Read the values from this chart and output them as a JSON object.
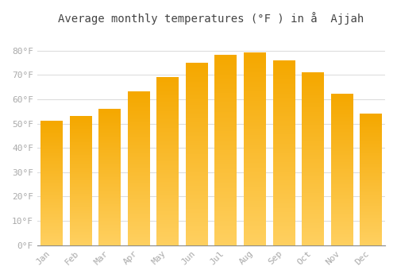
{
  "title": "Average monthly temperatures (°F ) in å  Ajjah",
  "months": [
    "Jan",
    "Feb",
    "Mar",
    "Apr",
    "May",
    "Jun",
    "Jul",
    "Aug",
    "Sep",
    "Oct",
    "Nov",
    "Dec"
  ],
  "values": [
    51,
    53,
    56,
    63,
    69,
    75,
    78,
    79,
    76,
    71,
    62,
    54
  ],
  "bar_color_dark": "#F5A800",
  "bar_color_light": "#FFD060",
  "background_color": "#FFFFFF",
  "grid_color": "#DDDDDD",
  "ylim": [
    0,
    88
  ],
  "yticks": [
    0,
    10,
    20,
    30,
    40,
    50,
    60,
    70,
    80
  ],
  "ytick_labels": [
    "0°F",
    "10°F",
    "20°F",
    "30°F",
    "40°F",
    "50°F",
    "60°F",
    "70°F",
    "80°F"
  ],
  "title_fontsize": 10,
  "tick_fontsize": 8,
  "tick_color": "#AAAAAA",
  "font_family": "monospace",
  "bar_width": 0.75,
  "gradient_steps": 100
}
